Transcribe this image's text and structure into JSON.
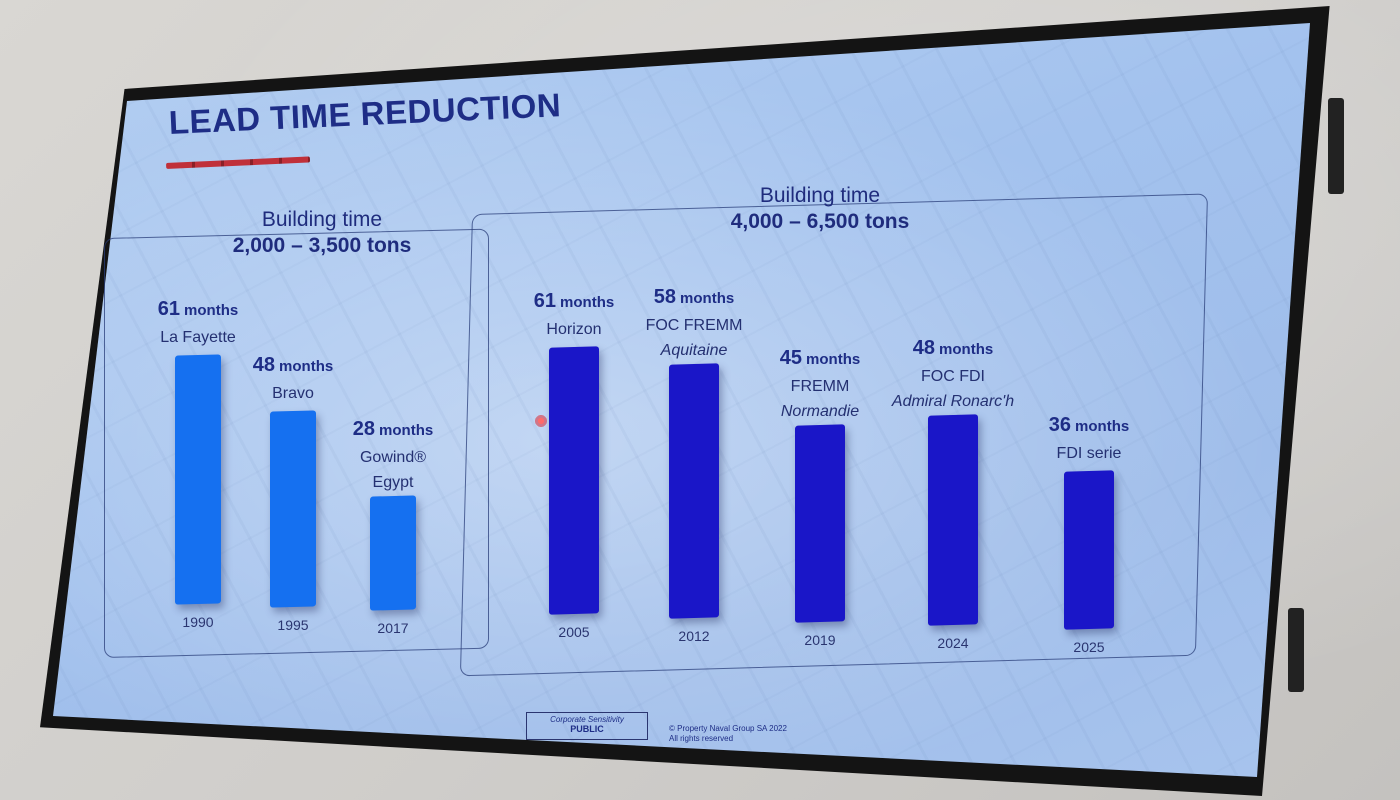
{
  "slide": {
    "title": "LEAD TIME REDUCTION",
    "footer": {
      "sensitivity_label": "Corporate Sensitivity",
      "sensitivity_value": "PUBLIC",
      "copyright_line1": "© Property Naval Group SA 2022",
      "copyright_line2": "All rights reserved"
    }
  },
  "colors": {
    "bar_light": "#1570f0",
    "bar_dark": "#1a16c8",
    "text": "#1e2d86",
    "title_underline": "#c0303a"
  },
  "chart_data": [
    {
      "type": "bar",
      "title_line1": "Building time",
      "title_line2": "2,000 – 3,500 tons",
      "unit": "months",
      "ylim": [
        0,
        61
      ],
      "color": "#1570f0",
      "bars": [
        {
          "year": "1990",
          "value": 61,
          "name": "La Fayette",
          "name_italic": ""
        },
        {
          "year": "1995",
          "value": 48,
          "name": "Bravo",
          "name_italic": ""
        },
        {
          "year": "2017",
          "value": 28,
          "name": "Gowind®\nEgypt",
          "name_italic": ""
        }
      ]
    },
    {
      "type": "bar",
      "title_line1": "Building time",
      "title_line2": "4,000 – 6,500 tons",
      "unit": "months",
      "ylim": [
        0,
        61
      ],
      "color": "#1a16c8",
      "bars": [
        {
          "year": "2005",
          "value": 61,
          "name": "Horizon",
          "name_italic": ""
        },
        {
          "year": "2012",
          "value": 58,
          "name": "FOC FREMM",
          "name_italic": "Aquitaine"
        },
        {
          "year": "2019",
          "value": 45,
          "name": "FREMM",
          "name_italic": "Normandie"
        },
        {
          "year": "2024",
          "value": 48,
          "name": "FOC FDI",
          "name_italic": "Admiral Ronarc'h"
        },
        {
          "year": "2025",
          "value": 36,
          "name": "FDI serie",
          "name_italic": ""
        }
      ]
    }
  ]
}
